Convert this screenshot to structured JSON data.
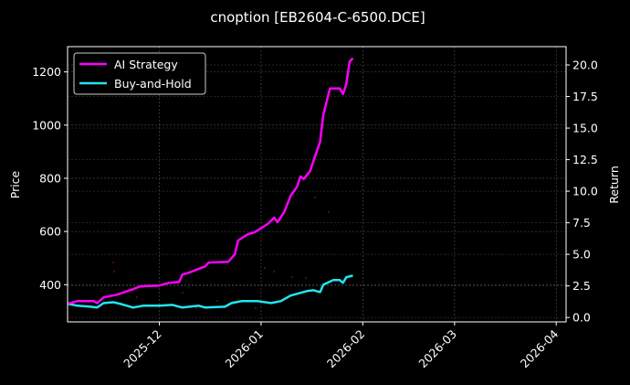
{
  "chart_data": {
    "type": "line",
    "title": "cnoption [EB2604-C-6500.DCE]",
    "xlabel": "",
    "ylabel": "Price",
    "ylabel_right": "Return",
    "x_ticks": [
      "2025-12",
      "2026-01",
      "2026-02",
      "2026-03",
      "2026-04"
    ],
    "y_ticks_left": [
      400,
      600,
      800,
      1000,
      1200
    ],
    "y_ticks_right": [
      "0.0",
      "2.5",
      "5.0",
      "7.5",
      "10.0",
      "12.5",
      "15.0",
      "17.5",
      "20.0"
    ],
    "ylim_left": [
      260,
      1295
    ],
    "ylim_right": [
      -0.35,
      21.45
    ],
    "xlim": [
      "2025-11-03",
      "2026-04-04"
    ],
    "grid": true,
    "legend_position": "upper left",
    "series": [
      {
        "name": "AI Strategy",
        "color": "#ff00ff",
        "points": [
          [
            "2025-11-03",
            328
          ],
          [
            "2025-11-06",
            338
          ],
          [
            "2025-11-11",
            338
          ],
          [
            "2025-11-12",
            331
          ],
          [
            "2025-11-14",
            352
          ],
          [
            "2025-11-18",
            362
          ],
          [
            "2025-11-23",
            383
          ],
          [
            "2025-11-25",
            393
          ],
          [
            "2025-12-01",
            397
          ],
          [
            "2025-12-04",
            407
          ],
          [
            "2025-12-07",
            410
          ],
          [
            "2025-12-08",
            438
          ],
          [
            "2025-12-10",
            445
          ],
          [
            "2025-12-15",
            469
          ],
          [
            "2025-12-16",
            483
          ],
          [
            "2025-12-22",
            486
          ],
          [
            "2025-12-24",
            514
          ],
          [
            "2025-12-25",
            566
          ],
          [
            "2025-12-28",
            590
          ],
          [
            "2025-12-30",
            597
          ],
          [
            "2026-01-03",
            628
          ],
          [
            "2026-01-05",
            652
          ],
          [
            "2026-01-06",
            635
          ],
          [
            "2026-01-08",
            672
          ],
          [
            "2026-01-10",
            734
          ],
          [
            "2026-01-12",
            769
          ],
          [
            "2026-01-13",
            807
          ],
          [
            "2026-01-14",
            797
          ],
          [
            "2026-01-16",
            828
          ],
          [
            "2026-01-17",
            866
          ],
          [
            "2026-01-19",
            938
          ],
          [
            "2026-01-20",
            1041
          ],
          [
            "2026-01-22",
            1138
          ],
          [
            "2026-01-25",
            1138
          ],
          [
            "2026-01-26",
            1117
          ],
          [
            "2026-01-27",
            1155
          ],
          [
            "2026-01-28",
            1238
          ],
          [
            "2026-01-29",
            1252
          ]
        ]
      },
      {
        "name": "Buy-and-Hold",
        "color": "#22e5ee",
        "points": [
          [
            "2025-11-03",
            328
          ],
          [
            "2025-11-06",
            321
          ],
          [
            "2025-11-10",
            317
          ],
          [
            "2025-11-12",
            314
          ],
          [
            "2025-11-14",
            331
          ],
          [
            "2025-11-17",
            334
          ],
          [
            "2025-11-19",
            328
          ],
          [
            "2025-11-23",
            314
          ],
          [
            "2025-11-26",
            321
          ],
          [
            "2025-12-01",
            321
          ],
          [
            "2025-12-05",
            324
          ],
          [
            "2025-12-08",
            314
          ],
          [
            "2025-12-13",
            321
          ],
          [
            "2025-12-15",
            314
          ],
          [
            "2025-12-21",
            317
          ],
          [
            "2025-12-23",
            331
          ],
          [
            "2025-12-26",
            338
          ],
          [
            "2025-12-31",
            338
          ],
          [
            "2026-01-04",
            331
          ],
          [
            "2026-01-07",
            338
          ],
          [
            "2026-01-10",
            359
          ],
          [
            "2026-01-15",
            376
          ],
          [
            "2026-01-17",
            379
          ],
          [
            "2026-01-19",
            372
          ],
          [
            "2026-01-20",
            400
          ],
          [
            "2026-01-23",
            417
          ],
          [
            "2026-01-25",
            417
          ],
          [
            "2026-01-26",
            407
          ],
          [
            "2026-01-27",
            428
          ],
          [
            "2026-01-29",
            434
          ]
        ]
      }
    ]
  },
  "legend": {
    "items": [
      {
        "label": "AI Strategy",
        "color": "#ff00ff"
      },
      {
        "label": "Buy-and-Hold",
        "color": "#22e5ee"
      }
    ]
  }
}
